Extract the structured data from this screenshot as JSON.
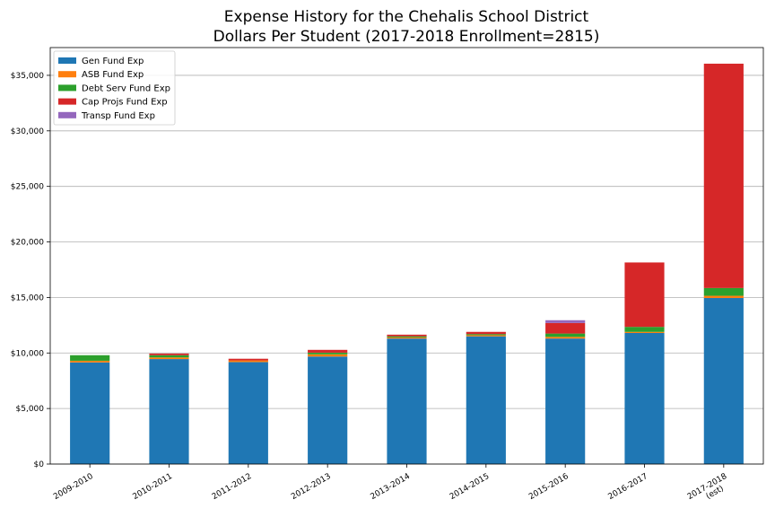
{
  "chart_data": {
    "type": "bar",
    "stacked": true,
    "title": "Expense History for the Chehalis School District",
    "subtitle": "Dollars Per Student (2017-2018 Enrollment=2815)",
    "xlabel": "",
    "ylabel": "",
    "categories": [
      "2009-2010",
      "2010-2011",
      "2011-2012",
      "2012-2013",
      "2013-2014",
      "2014-2015",
      "2015-2016",
      "2016-2017",
      "2017-2018\n(est)"
    ],
    "ylim": [
      0,
      37500
    ],
    "yticks": [
      0,
      5000,
      10000,
      15000,
      20000,
      25000,
      30000,
      35000
    ],
    "ytick_labels": [
      "$0",
      "$5,000",
      "$10,000",
      "$15,000",
      "$20,000",
      "$25,000",
      "$30,000",
      "$35,000"
    ],
    "grid": "horizontal",
    "legend_position": "top-left",
    "series": [
      {
        "name": "Gen Fund Exp",
        "color": "#1f77b4",
        "values": [
          9150,
          9450,
          9180,
          9680,
          11300,
          11500,
          11300,
          11800,
          14950
        ]
      },
      {
        "name": "ASB Fund Exp",
        "color": "#ff7f0e",
        "values": [
          150,
          150,
          150,
          200,
          100,
          100,
          150,
          100,
          200
        ]
      },
      {
        "name": "Debt Serv Fund Exp",
        "color": "#2ca02c",
        "values": [
          500,
          200,
          0,
          150,
          100,
          100,
          300,
          450,
          700
        ]
      },
      {
        "name": "Cap Projs Fund Exp",
        "color": "#d62728",
        "values": [
          0,
          150,
          150,
          250,
          150,
          200,
          950,
          5800,
          20200
        ]
      },
      {
        "name": "Transp Fund Exp",
        "color": "#9467bd",
        "values": [
          0,
          0,
          0,
          0,
          0,
          0,
          250,
          0,
          0
        ]
      }
    ]
  }
}
